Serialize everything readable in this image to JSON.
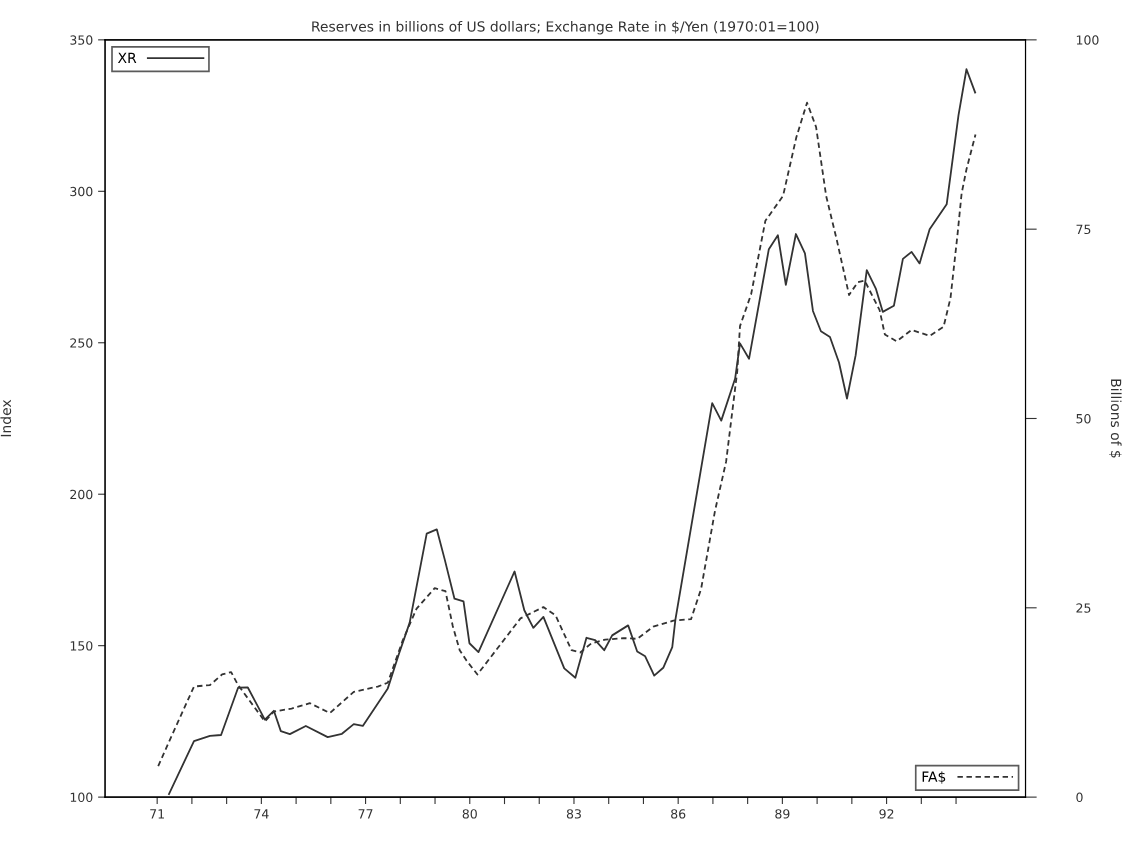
{
  "chart_data": {
    "type": "line",
    "title": "Reserves in billions of US dollars; Exchange Rate in $/Yen (1970:01=100)",
    "ylabel": "Index",
    "y2label": "Billions of $",
    "xlim": [
      1969.5,
      1996
    ],
    "xticks": [
      {
        "value": 1971,
        "label": "71"
      },
      {
        "value": 1972,
        "label": null
      },
      {
        "value": 1973,
        "label": null
      },
      {
        "value": 1974,
        "label": "74"
      },
      {
        "value": 1975,
        "label": null
      },
      {
        "value": 1976,
        "label": null
      },
      {
        "value": 1977,
        "label": "77"
      },
      {
        "value": 1978,
        "label": null
      },
      {
        "value": 1979,
        "label": null
      },
      {
        "value": 1980,
        "label": "80"
      },
      {
        "value": 1981,
        "label": null
      },
      {
        "value": 1982,
        "label": null
      },
      {
        "value": 1983,
        "label": "83"
      },
      {
        "value": 1984,
        "label": null
      },
      {
        "value": 1985,
        "label": null
      },
      {
        "value": 1986,
        "label": "86"
      },
      {
        "value": 1987,
        "label": null
      },
      {
        "value": 1988,
        "label": null
      },
      {
        "value": 1989,
        "label": "89"
      },
      {
        "value": 1990,
        "label": null
      },
      {
        "value": 1991,
        "label": null
      },
      {
        "value": 1992,
        "label": "92"
      },
      {
        "value": 1993,
        "label": null
      },
      {
        "value": 1994,
        "label": null
      }
    ],
    "ylim": [
      100,
      350
    ],
    "yticks": [
      100,
      150,
      200,
      250,
      300,
      350
    ],
    "y2lim": [
      0,
      100
    ],
    "y2ticks": [
      0,
      25,
      50,
      75,
      100
    ],
    "grid": false,
    "legend": [
      "top left",
      "bottom right"
    ],
    "series": [
      {
        "name": "XR",
        "color": "#333333",
        "line_style": "solid",
        "x": [
          1971.34,
          1972.06,
          1972.52,
          1972.84,
          1973.33,
          1973.61,
          1974.1,
          1974.36,
          1974.56,
          1974.82,
          1975.28,
          1975.91,
          1976.32,
          1976.66,
          1976.92,
          1977.64,
          1977.95,
          1978.27,
          1978.76,
          1979.05,
          1979.28,
          1979.56,
          1979.82,
          1979.99,
          1980.25,
          1981.29,
          1981.57,
          1981.83,
          1982.12,
          1982.72,
          1983.04,
          1983.36,
          1983.61,
          1983.87,
          1984.1,
          1984.56,
          1984.82,
          1985.05,
          1985.31,
          1985.57,
          1985.83,
          1985.92,
          1986.98,
          1987.24,
          1987.64,
          1987.78,
          1988.04,
          1988.61,
          1988.87,
          1989.1,
          1989.39,
          1989.65,
          1989.88,
          1990.11,
          1990.37,
          1990.63,
          1990.86,
          1991.11,
          1991.43,
          1991.69,
          1991.89,
          1992.21,
          1992.47,
          1992.72,
          1992.95,
          1993.24,
          1993.73,
          1994.07,
          1994.3,
          1994.55
        ],
        "values": [
          101,
          118.5,
          120.2,
          120.5,
          136.1,
          136.2,
          125.6,
          128.5,
          121.8,
          120.8,
          123.5,
          119.8,
          120.9,
          124.1,
          123.5,
          135.9,
          146.9,
          157.6,
          187.0,
          188.4,
          178.4,
          165.5,
          164.6,
          150.8,
          147.9,
          174.5,
          161.7,
          155.9,
          159.5,
          142.5,
          139.4,
          152.6,
          151.8,
          148.5,
          153.4,
          156.7,
          148.1,
          146.5,
          140.1,
          142.7,
          149.5,
          158.6,
          230.1,
          224.3,
          238.2,
          249.8,
          244.7,
          280.9,
          285.5,
          269.1,
          285.9,
          279.5,
          260.5,
          253.8,
          251.9,
          243.5,
          231.6,
          245.9,
          274,
          267.9,
          260.2,
          262.2,
          277.7,
          280,
          276.2,
          287.5,
          295.7,
          325.1,
          340.3,
          332.6
        ]
      },
      {
        "name": "FA$",
        "color": "#333333",
        "line_style": "dashed",
        "axis": "y2",
        "x": [
          1971.03,
          1971.34,
          1972.06,
          1972.52,
          1972.87,
          1973.13,
          1973.33,
          1974.1,
          1974.36,
          1974.87,
          1975.4,
          1975.97,
          1976.66,
          1977.35,
          1977.64,
          1978.07,
          1978.47,
          1978.99,
          1979.3,
          1979.51,
          1979.71,
          1979.91,
          1980.22,
          1981.46,
          1982.12,
          1982.47,
          1982.93,
          1983.18,
          1983.5,
          1983.9,
          1984.42,
          1984.82,
          1985.28,
          1985.86,
          1986.37,
          1986.66,
          1987.06,
          1987.38,
          1987.7,
          1987.78,
          1988.1,
          1988.51,
          1989.02,
          1989.4,
          1989.71,
          1989.97,
          1990.26,
          1990.57,
          1990.92,
          1991.17,
          1991.37,
          1991.8,
          1991.95,
          1992.29,
          1992.72,
          1993.24,
          1993.64,
          1993.84,
          1994.04,
          1994.16,
          1994.3,
          1994.56
        ],
        "values": [
          4.1,
          7.3,
          14.6,
          14.8,
          16.2,
          16.5,
          14.8,
          10.0,
          11.3,
          11.7,
          12.4,
          11.1,
          13.9,
          14.6,
          15.1,
          20.7,
          24.9,
          27.6,
          27.2,
          22.6,
          19.4,
          18.0,
          16.2,
          23.6,
          25.1,
          24.0,
          19.4,
          19.1,
          20.3,
          20.8,
          21.0,
          20.9,
          22.5,
          23.3,
          23.5,
          27.5,
          37.8,
          44.3,
          56.2,
          62.2,
          66.4,
          76.1,
          79.4,
          87.1,
          91.7,
          88.5,
          79.4,
          73.5,
          66.3,
          68.0,
          68.2,
          64.3,
          61.1,
          60.2,
          61.7,
          60.9,
          62.1,
          65.9,
          74.2,
          79.7,
          82.9,
          87.5
        ]
      }
    ]
  }
}
